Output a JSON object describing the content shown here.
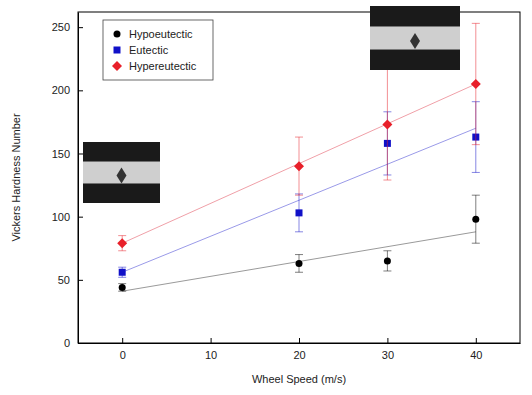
{
  "chart_data": {
    "type": "scatter",
    "x_label": "Wheel Speed (m/s)",
    "y_label": "Vickers Hardness Number",
    "x": [
      0,
      20,
      30,
      40
    ],
    "xlim": [
      -5,
      45
    ],
    "ylim": [
      0,
      262
    ],
    "xticks": [
      0,
      10,
      20,
      30,
      40
    ],
    "yticks": [
      0,
      50,
      100,
      150,
      200,
      250
    ],
    "legend": "upper left",
    "series": [
      {
        "name": "Hypoeutectic",
        "color": "#000000",
        "marker": "circle",
        "values": [
          44,
          63,
          65,
          98
        ],
        "errors": [
          3,
          7,
          8,
          19
        ]
      },
      {
        "name": "Eutectic",
        "color": "#1010c8",
        "marker": "square",
        "values": [
          56,
          103,
          158,
          163
        ],
        "errors": [
          4,
          15,
          25,
          28
        ]
      },
      {
        "name": "Hypereutectic",
        "color": "#e8202a",
        "marker": "diamond",
        "values": [
          79,
          140,
          173,
          205
        ],
        "errors": [
          6,
          23,
          44,
          48
        ]
      },
      {
        "type": "line",
        "color": "#9a9a9a",
        "x": [
          0,
          40
        ],
        "values": [
          41,
          88
        ]
      },
      {
        "type": "line",
        "color": "#9a9ae8",
        "x": [
          0,
          40
        ],
        "values": [
          56,
          170
        ]
      },
      {
        "type": "line",
        "color": "#f0a0a8",
        "x": [
          0,
          40
        ],
        "values": [
          79,
          205
        ]
      }
    ]
  }
}
